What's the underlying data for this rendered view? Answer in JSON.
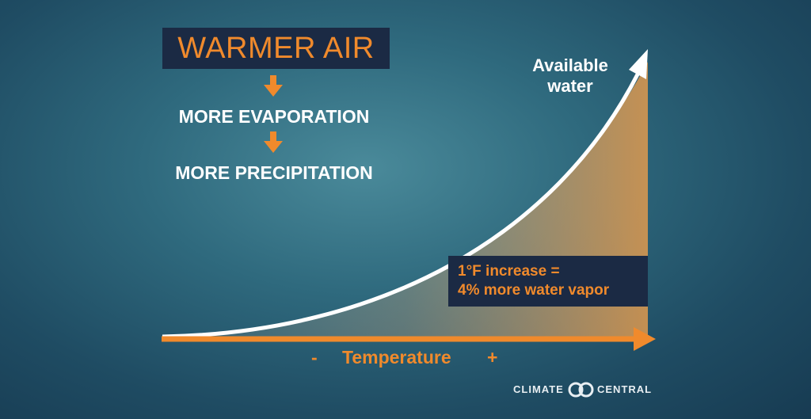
{
  "title": "WARMER AIR",
  "steps": [
    "MORE EVAPORATION",
    "MORE PRECIPITATION"
  ],
  "curve_label": [
    "Available",
    "water"
  ],
  "note": [
    "1°F increase =",
    "4% more water vapor"
  ],
  "x_axis": {
    "minus": "-",
    "label": "Temperature",
    "plus": "+"
  },
  "logo": {
    "left": "CLIMATE",
    "right": "CENTRAL"
  }
}
